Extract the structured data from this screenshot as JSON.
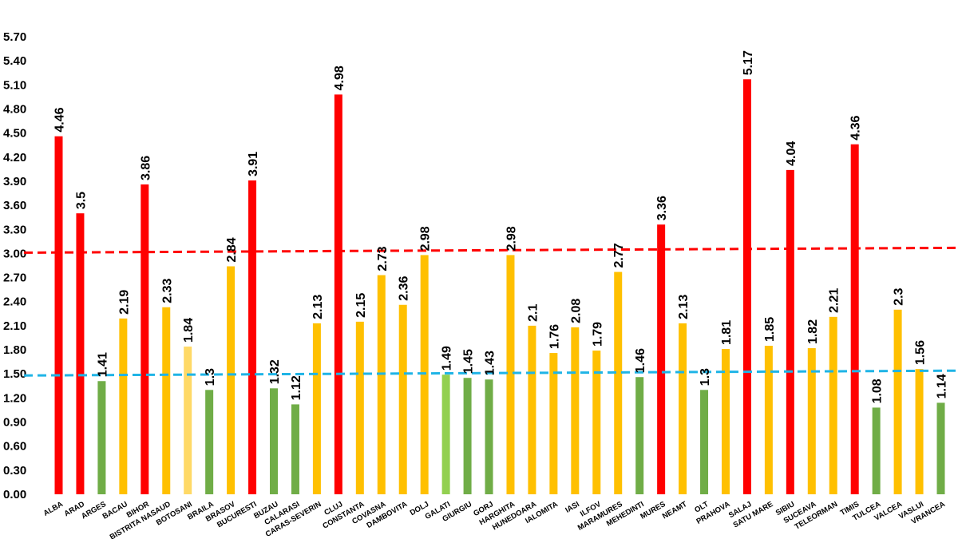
{
  "chart_data": {
    "type": "bar",
    "title": "",
    "xlabel": "",
    "ylabel": "",
    "ylim": [
      0,
      5.7
    ],
    "yticks": [
      "0.00",
      "0.30",
      "0.60",
      "0.90",
      "1.20",
      "1.50",
      "1.80",
      "2.10",
      "2.40",
      "2.70",
      "3.00",
      "3.30",
      "3.60",
      "3.90",
      "4.20",
      "4.50",
      "4.80",
      "5.10",
      "5.40",
      "5.70"
    ],
    "categories": [
      "ALBA",
      "ARAD",
      "ARGES",
      "BACAU",
      "BIHOR",
      "BISTRITA NASAUD",
      "BOTOSANI",
      "BRAILA",
      "BRASOV",
      "BUCURESTI",
      "BUZAU",
      "CALARASI",
      "CARAS-SEVERIN",
      "CLUJ",
      "CONSTANTA",
      "COVASNA",
      "DAMBOVITA",
      "DOLJ",
      "GALATI",
      "GIURGIU",
      "GORJ",
      "HARGHITA",
      "HUNEDOARA",
      "IALOMITA",
      "IASI",
      "ILFOV",
      "MARAMURES",
      "MEHEDINTI",
      "MURES",
      "NEAMT",
      "OLT",
      "PRAHOVA",
      "SALAJ",
      "SATU MARE",
      "SIBIU",
      "SUCEAVA",
      "TELEORMAN",
      "TIMIS",
      "TULCEA",
      "VALCEA",
      "VASLUI",
      "VRANCEA"
    ],
    "values": [
      4.46,
      3.5,
      1.41,
      2.19,
      3.86,
      2.33,
      1.84,
      1.3,
      2.84,
      3.91,
      1.32,
      1.12,
      2.13,
      4.98,
      2.15,
      2.73,
      2.36,
      2.98,
      1.49,
      1.45,
      1.43,
      2.98,
      2.1,
      1.76,
      2.08,
      1.79,
      2.77,
      1.46,
      3.36,
      2.13,
      1.3,
      1.81,
      5.17,
      1.85,
      4.04,
      1.82,
      2.21,
      4.36,
      1.08,
      2.3,
      1.56,
      1.14
    ],
    "value_labels": [
      "4.46",
      "3.5",
      "1.41",
      "2.19",
      "3.86",
      "2.33",
      "1.84",
      "1.3",
      "2.84",
      "3.91",
      "1.32",
      "1.12",
      "2.13",
      "4.98",
      "2.15",
      "2.73",
      "2.36",
      "2.98",
      "1.49",
      "1.45",
      "1.43",
      "2.98",
      "2.1",
      "1.76",
      "2.08",
      "1.79",
      "2.77",
      "1.46",
      "3.36",
      "2.13",
      "1.3",
      "1.81",
      "5.17",
      "1.85",
      "4.04",
      "1.82",
      "2.21",
      "4.36",
      "1.08",
      "2.3",
      "1.56",
      "1.14"
    ],
    "bar_colors": [
      "#ff0000",
      "#ff0000",
      "#70ad47",
      "#ffc000",
      "#ff0000",
      "#ffc000",
      "#ffd966",
      "#70ad47",
      "#ffc000",
      "#ff0000",
      "#70ad47",
      "#70ad47",
      "#ffc000",
      "#ff0000",
      "#ffc000",
      "#ffc000",
      "#ffc000",
      "#ffc000",
      "#92d050",
      "#70ad47",
      "#70ad47",
      "#ffc000",
      "#ffc000",
      "#ffc000",
      "#ffc000",
      "#ffc000",
      "#ffc000",
      "#70ad47",
      "#ff0000",
      "#ffc000",
      "#70ad47",
      "#ffc000",
      "#ff0000",
      "#ffc000",
      "#ff0000",
      "#ffc000",
      "#ffc000",
      "#ff0000",
      "#70ad47",
      "#ffc000",
      "#ffc000",
      "#70ad47"
    ],
    "reference_lines": [
      {
        "name": "upper-threshold",
        "value_start": 3.01,
        "value_end": 3.07,
        "color": "#ff0000",
        "style": "dashed"
      },
      {
        "name": "lower-threshold",
        "value_start": 1.48,
        "value_end": 1.54,
        "color": "#1fb4e6",
        "style": "dashed"
      }
    ],
    "grid": false,
    "legend": "none"
  }
}
